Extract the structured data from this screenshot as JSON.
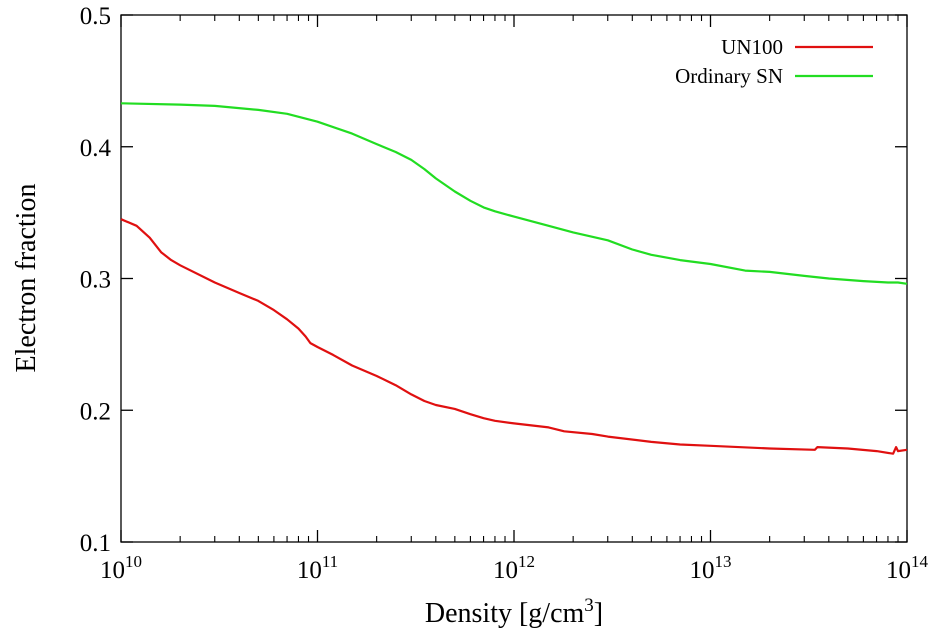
{
  "chart_data": {
    "type": "line",
    "title": "",
    "xlabel": "Density [g/cm",
    "xlabel_sup": "3",
    "xlabel_tail": "]",
    "ylabel": "Electron fraction",
    "xscale": "log",
    "xlim": [
      10000000000.0,
      100000000000000.0
    ],
    "ylim": [
      0.1,
      0.5
    ],
    "grid": false,
    "legend_position": "top-right",
    "x_ticks": [
      {
        "value": 10000000000.0,
        "base": "10",
        "exp": "10"
      },
      {
        "value": 100000000000.0,
        "base": "10",
        "exp": "11"
      },
      {
        "value": 1000000000000.0,
        "base": "10",
        "exp": "12"
      },
      {
        "value": 10000000000000.0,
        "base": "10",
        "exp": "13"
      },
      {
        "value": 100000000000000.0,
        "base": "10",
        "exp": "14"
      }
    ],
    "y_ticks": [
      {
        "value": 0.1,
        "label": "0.1"
      },
      {
        "value": 0.2,
        "label": "0.2"
      },
      {
        "value": 0.3,
        "label": "0.3"
      },
      {
        "value": 0.4,
        "label": "0.4"
      },
      {
        "value": 0.5,
        "label": "0.5"
      }
    ],
    "series": [
      {
        "name": "UN100",
        "color": "#e01010",
        "points": [
          [
            10000000000.0,
            0.345
          ],
          [
            12000000000.0,
            0.34
          ],
          [
            14000000000.0,
            0.331
          ],
          [
            16000000000.0,
            0.32
          ],
          [
            18000000000.0,
            0.314
          ],
          [
            20000000000.0,
            0.31
          ],
          [
            30000000000.0,
            0.297
          ],
          [
            40000000000.0,
            0.289
          ],
          [
            50000000000.0,
            0.283
          ],
          [
            60000000000.0,
            0.276
          ],
          [
            70000000000.0,
            0.269
          ],
          [
            80000000000.0,
            0.262
          ],
          [
            87000000000.0,
            0.256
          ],
          [
            92000000000.0,
            0.251
          ],
          [
            100000000000.0,
            0.248
          ],
          [
            120000000000.0,
            0.242
          ],
          [
            150000000000.0,
            0.234
          ],
          [
            200000000000.0,
            0.226
          ],
          [
            250000000000.0,
            0.219
          ],
          [
            300000000000.0,
            0.212
          ],
          [
            350000000000.0,
            0.207
          ],
          [
            400000000000.0,
            0.204
          ],
          [
            500000000000.0,
            0.201
          ],
          [
            600000000000.0,
            0.197
          ],
          [
            700000000000.0,
            0.194
          ],
          [
            800000000000.0,
            0.192
          ],
          [
            1000000000000.0,
            0.19
          ],
          [
            1500000000000.0,
            0.187
          ],
          [
            1800000000000.0,
            0.184
          ],
          [
            2500000000000.0,
            0.182
          ],
          [
            3000000000000.0,
            0.18
          ],
          [
            5000000000000.0,
            0.176
          ],
          [
            7000000000000.0,
            0.174
          ],
          [
            10000000000000.0,
            0.173
          ],
          [
            20000000000000.0,
            0.171
          ],
          [
            34000000000000.0,
            0.17
          ],
          [
            35000000000000.0,
            0.172
          ],
          [
            50000000000000.0,
            0.171
          ],
          [
            70000000000000.0,
            0.169
          ],
          [
            85000000000000.0,
            0.167
          ],
          [
            88000000000000.0,
            0.172
          ],
          [
            90000000000000.0,
            0.169
          ],
          [
            100000000000000.0,
            0.17
          ]
        ]
      },
      {
        "name": "Ordinary SN",
        "color": "#22dd22",
        "points": [
          [
            10000000000.0,
            0.433
          ],
          [
            20000000000.0,
            0.432
          ],
          [
            30000000000.0,
            0.431
          ],
          [
            50000000000.0,
            0.428
          ],
          [
            70000000000.0,
            0.425
          ],
          [
            100000000000.0,
            0.419
          ],
          [
            150000000000.0,
            0.41
          ],
          [
            200000000000.0,
            0.402
          ],
          [
            250000000000.0,
            0.396
          ],
          [
            300000000000.0,
            0.39
          ],
          [
            350000000000.0,
            0.383
          ],
          [
            400000000000.0,
            0.376
          ],
          [
            500000000000.0,
            0.366
          ],
          [
            600000000000.0,
            0.359
          ],
          [
            700000000000.0,
            0.354
          ],
          [
            800000000000.0,
            0.351
          ],
          [
            1000000000000.0,
            0.347
          ],
          [
            1500000000000.0,
            0.34
          ],
          [
            2000000000000.0,
            0.335
          ],
          [
            3000000000000.0,
            0.329
          ],
          [
            4000000000000.0,
            0.322
          ],
          [
            5000000000000.0,
            0.318
          ],
          [
            7000000000000.0,
            0.314
          ],
          [
            10000000000000.0,
            0.311
          ],
          [
            15000000000000.0,
            0.306
          ],
          [
            20000000000000.0,
            0.305
          ],
          [
            30000000000000.0,
            0.302
          ],
          [
            40000000000000.0,
            0.3
          ],
          [
            60000000000000.0,
            0.298
          ],
          [
            80000000000000.0,
            0.297
          ],
          [
            90000000000000.0,
            0.297
          ],
          [
            100000000000000.0,
            0.296
          ]
        ]
      }
    ]
  }
}
